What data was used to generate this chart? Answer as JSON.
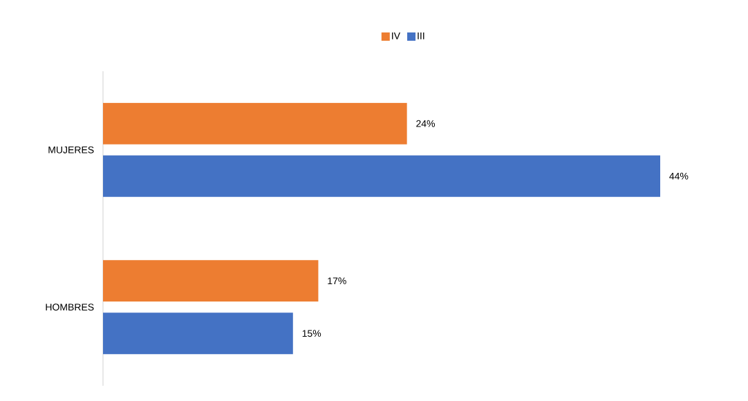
{
  "chart_data": {
    "type": "bar",
    "orientation": "horizontal",
    "categories": [
      "MUJERES",
      "HOMBRES"
    ],
    "legend": "top",
    "series": [
      {
        "name": "IV",
        "color": "#ed7d31",
        "values": [
          24,
          17
        ],
        "value_labels": [
          "24%",
          "17%"
        ]
      },
      {
        "name": "III",
        "color": "#4472c4",
        "values": [
          44,
          15
        ],
        "value_labels": [
          "44%",
          "15%"
        ]
      }
    ]
  }
}
